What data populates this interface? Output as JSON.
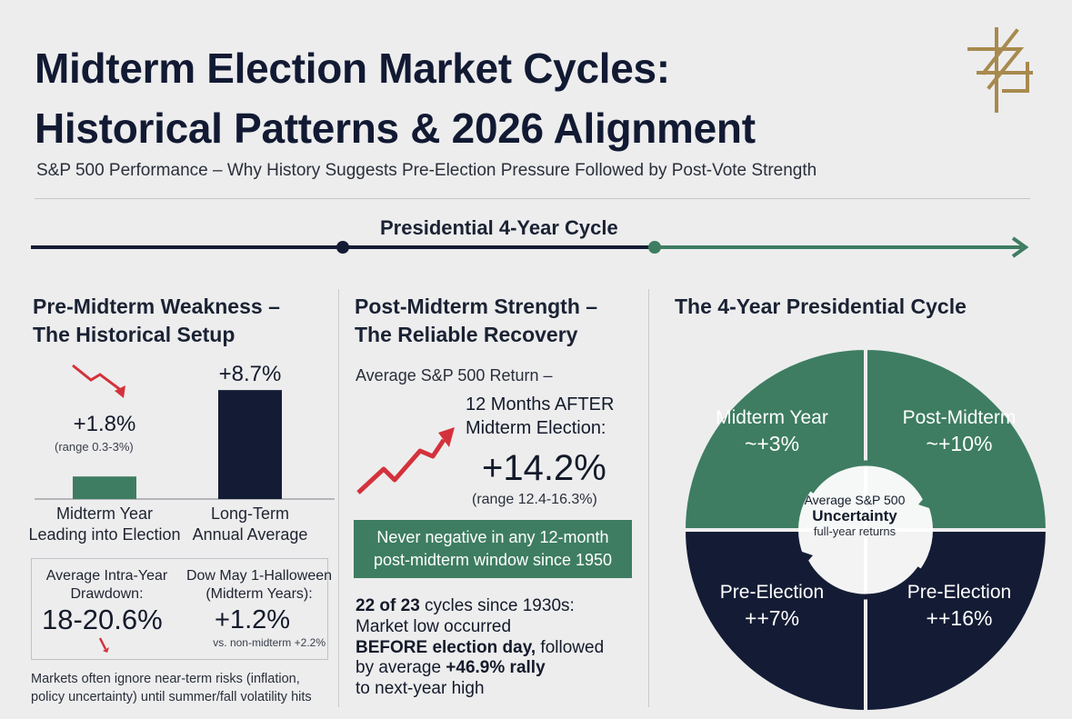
{
  "header": {
    "title_line1": "Midterm Election Market Cycles:",
    "title_line2": "Historical Patterns & 2026 Alignment",
    "subtitle": "S&P 500 Performance – Why History Suggests Pre-Election Pressure Followed by Post-Vote Strength"
  },
  "timeline": {
    "label": "Presidential 4-Year Cycle"
  },
  "left": {
    "heading_line1": "Pre-Midterm Weakness –",
    "heading_line2": "The Historical Setup",
    "drawdown": {
      "label_line1": "Average Intra-Year",
      "label_line2": "Drawdown:",
      "value": "18-20.6%"
    },
    "dow": {
      "label_line1": "Dow May 1-Halloween",
      "label_line2": "(Midterm Years):",
      "value": "+1.2%",
      "note": "vs. non-midterm +2.2%"
    },
    "footnote_line1": "Markets often ignore near-term risks (inflation,",
    "footnote_line2": "policy uncertainty) until summer/fall volatility hits"
  },
  "middle": {
    "heading_line1": "Post-Midterm Strength –",
    "heading_line2": "The Reliable Recovery",
    "avg_label": "Average S&P 500 Return –",
    "after_line1": "12 Months AFTER",
    "after_line2": "Midterm Election:",
    "value": "+14.2%",
    "range": "(range 12.4-16.3%)",
    "box_line1": "Never negative in any 12-month",
    "box_line2": "post-midterm window since 1950",
    "cycles_line1_bold": "22 of 23",
    "cycles_line1_rest": " cycles since 1930s:",
    "cycles_line2": "Market low occurred",
    "cycles_line3_bold": "BEFORE election day,",
    "cycles_line3_rest": " followed",
    "cycles_line4_a": "by average ",
    "cycles_line4_bold": "+46.9% rally",
    "cycles_line5": "to next-year high"
  },
  "right": {
    "heading": "The 4-Year Presidential Cycle",
    "center_line1": "Average S&P 500",
    "center_line2": "Uncertainty",
    "center_line3": "full-year returns"
  },
  "colors": {
    "green": "#3e7d62",
    "navy": "#141c35",
    "red": "#d4323b",
    "gold": "#a88a4e"
  },
  "chart_data": [
    {
      "type": "bar",
      "categories": [
        "Midterm Year Leading into Election",
        "Long-Term Annual Average"
      ],
      "category_lines": [
        [
          "Midterm Year",
          "Leading into Election"
        ],
        [
          "Long-Term",
          "Annual Average"
        ]
      ],
      "values": [
        1.8,
        8.7
      ],
      "value_labels": [
        "+1.8%",
        "+8.7%"
      ],
      "range_label": "(range 0.3-3%)",
      "colors": [
        "#3e7d62",
        "#141c35"
      ]
    },
    {
      "type": "pie",
      "labels": [
        "Midterm Year",
        "Post-Midterm",
        "Pre-Election",
        "Pre-Election"
      ],
      "value_labels": [
        "~+3%",
        "~+10%",
        "++7%",
        "++16%"
      ],
      "values": [
        25,
        25,
        25,
        25
      ],
      "colors": [
        "#3e7d62",
        "#3e7d62",
        "#141c35",
        "#141c35"
      ]
    }
  ]
}
